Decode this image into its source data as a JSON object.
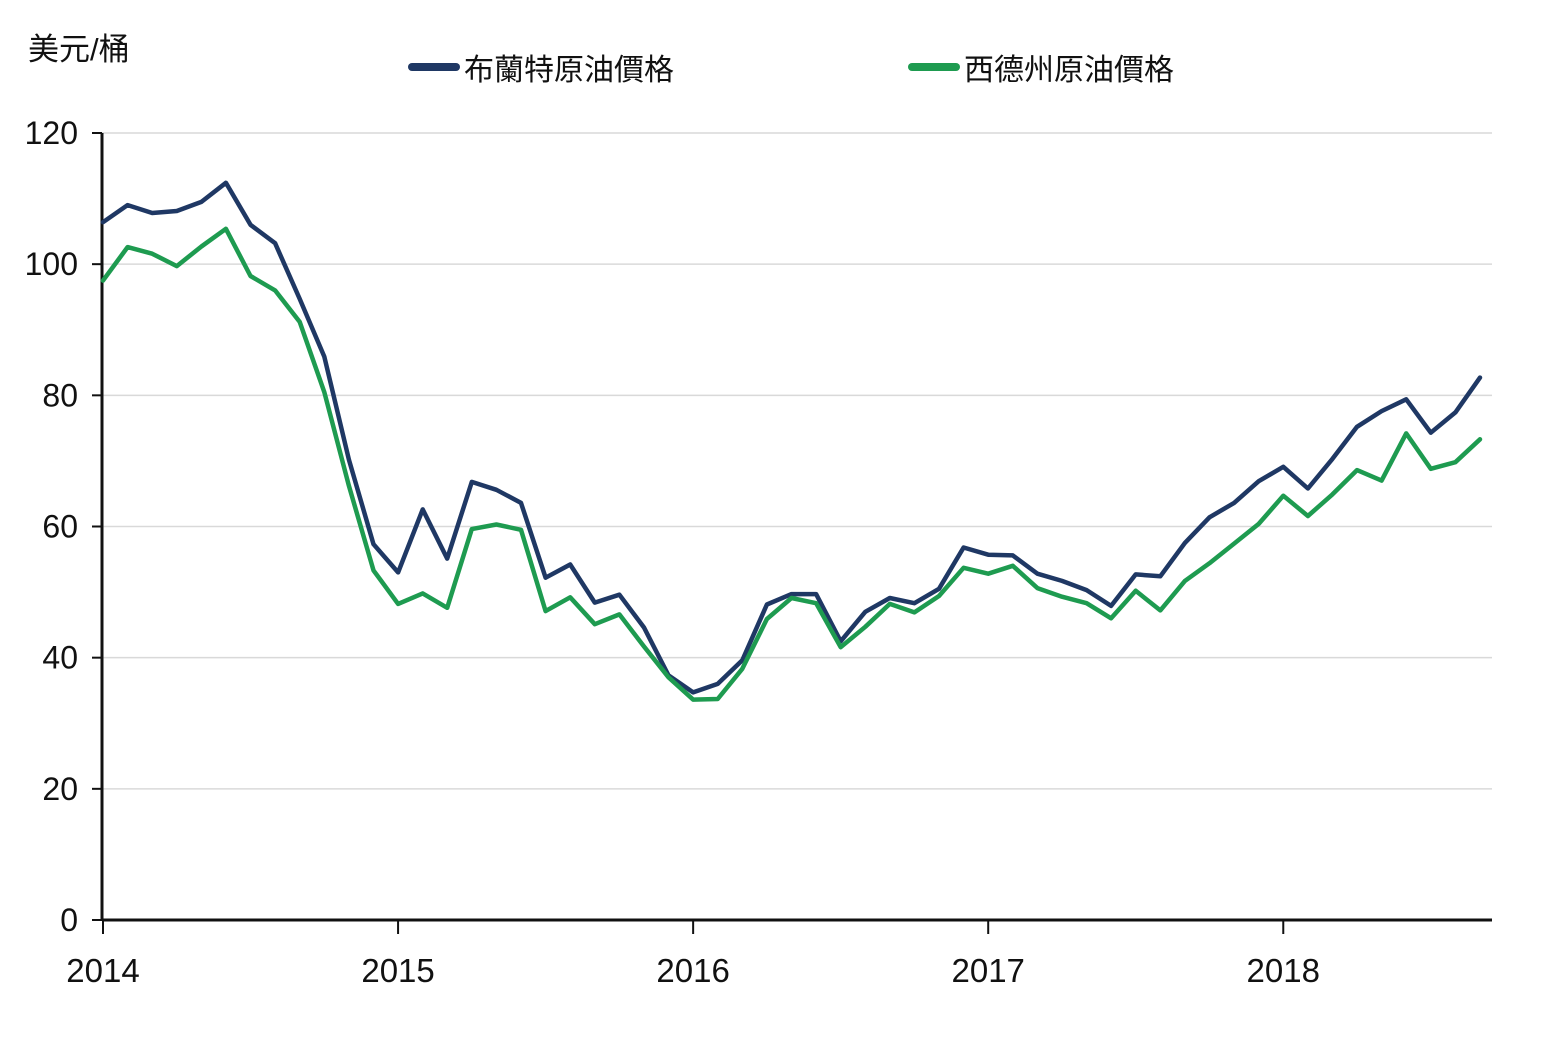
{
  "unit_label": "美元/桶",
  "colors": {
    "brent": "#1f3864",
    "wti": "#1e9b50",
    "grid": "#d9d9d9",
    "axis": "#111111",
    "text": "#111111"
  },
  "chart_data": {
    "type": "line",
    "title": "",
    "ylabel": "美元/桶",
    "xlabel": "",
    "ylim": [
      0,
      120
    ],
    "y_ticks": [
      0,
      20,
      40,
      60,
      80,
      100,
      120
    ],
    "x_tick_labels": [
      "2014",
      "2015",
      "2016",
      "2017",
      "2018"
    ],
    "frequency": "monthly",
    "start_label": "2014",
    "grid": "horizontal",
    "legend_position": "top",
    "series": [
      {
        "name": "布蘭特原油價格",
        "color": "#1f3864",
        "values": [
          106.4,
          109.0,
          107.8,
          108.1,
          109.5,
          112.4,
          106.0,
          103.2,
          94.7,
          85.9,
          70.2,
          57.3,
          53.0,
          62.6,
          55.1,
          66.8,
          65.6,
          63.6,
          52.2,
          54.2,
          48.4,
          49.6,
          44.6,
          37.3,
          34.7,
          36.0,
          39.6,
          48.1,
          49.7,
          49.7,
          42.5,
          47.0,
          49.1,
          48.3,
          50.5,
          56.8,
          55.7,
          55.6,
          52.8,
          51.7,
          50.3,
          47.9,
          52.7,
          52.4,
          57.5,
          61.4,
          63.6,
          66.9,
          69.1,
          65.8,
          70.3,
          75.2,
          77.6,
          79.4,
          74.3,
          77.4,
          82.7
        ]
      },
      {
        "name": "西德州原油價格",
        "color": "#1e9b50",
        "values": [
          97.5,
          102.6,
          101.6,
          99.7,
          102.7,
          105.4,
          98.2,
          96.0,
          91.2,
          80.5,
          66.2,
          53.3,
          48.2,
          49.8,
          47.6,
          59.6,
          60.3,
          59.5,
          47.1,
          49.2,
          45.1,
          46.6,
          41.7,
          37.0,
          33.6,
          33.7,
          38.3,
          45.9,
          49.1,
          48.3,
          41.6,
          44.7,
          48.2,
          46.9,
          49.4,
          53.7,
          52.8,
          54.0,
          50.6,
          49.3,
          48.3,
          46.0,
          50.2,
          47.2,
          51.7,
          54.4,
          57.4,
          60.4,
          64.7,
          61.6,
          64.9,
          68.6,
          67.0,
          74.2,
          68.8,
          69.8,
          73.3
        ]
      }
    ]
  }
}
